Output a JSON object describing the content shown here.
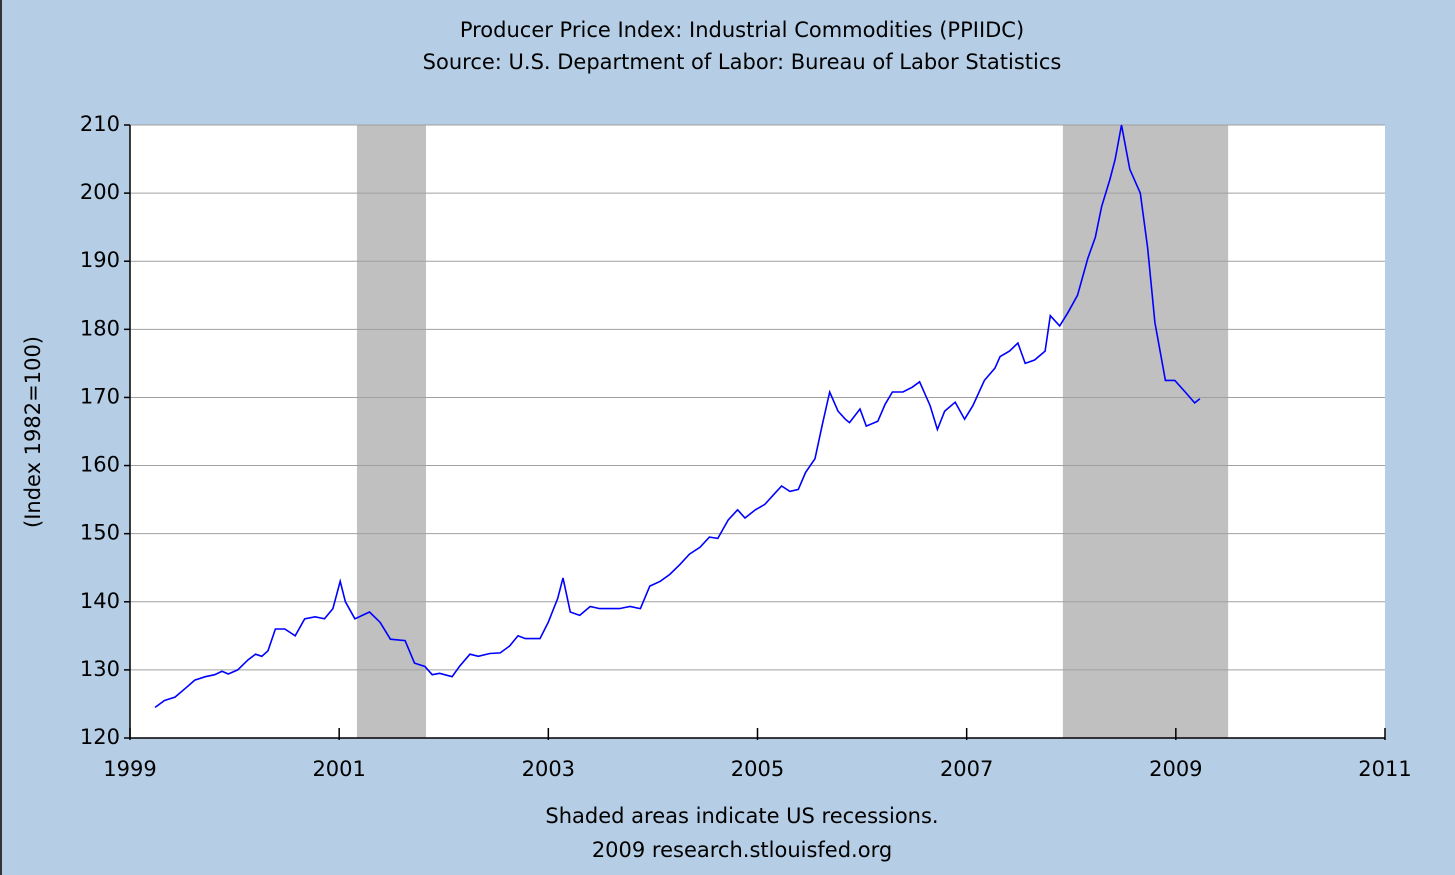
{
  "chart_data": {
    "type": "line",
    "title": "Producer Price Index: Industrial Commodities (PPIIDC)",
    "subtitle": "Source: U.S. Department of Labor: Bureau of Labor Statistics",
    "y_label": "(Index 1982=100)",
    "note": "Shaded areas indicate US recessions.",
    "credit": "2009 research.stlouisfed.org",
    "xlim": [
      1999,
      2011
    ],
    "xticks": [
      1999,
      2001,
      2003,
      2005,
      2007,
      2009,
      2011
    ],
    "ylim": [
      120,
      210
    ],
    "yticks": [
      120,
      130,
      140,
      150,
      160,
      170,
      180,
      190,
      200,
      210
    ],
    "grid": true,
    "recessions": [
      [
        2001.17,
        2001.83
      ],
      [
        2007.92,
        2009.5
      ]
    ],
    "recession_color": "#c0c0c0",
    "x": [
      1999.24,
      1999.33,
      1999.43,
      1999.53,
      1999.62,
      1999.72,
      1999.81,
      1999.88,
      1999.94,
      2000.03,
      2000.13,
      2000.2,
      2000.26,
      2000.32,
      2000.39,
      2000.48,
      2000.58,
      2000.67,
      2000.77,
      2000.86,
      2000.94,
      2001.01,
      2001.06,
      2001.15,
      2001.29,
      2001.39,
      2001.49,
      2001.63,
      2001.72,
      2001.82,
      2001.89,
      2001.96,
      2002.08,
      2002.15,
      2002.25,
      2002.33,
      2002.44,
      2002.54,
      2002.63,
      2002.71,
      2002.78,
      2002.92,
      2003.0,
      2003.09,
      2003.14,
      2003.21,
      2003.3,
      2003.4,
      2003.49,
      2003.68,
      2003.78,
      2003.88,
      2003.97,
      2004.07,
      2004.16,
      2004.26,
      2004.35,
      2004.45,
      2004.54,
      2004.62,
      2004.72,
      2004.81,
      2004.88,
      2004.98,
      2005.07,
      2005.17,
      2005.23,
      2005.31,
      2005.39,
      2005.46,
      2005.55,
      2005.62,
      2005.69,
      2005.77,
      2005.84,
      2005.88,
      2005.98,
      2006.04,
      2006.15,
      2006.22,
      2006.29,
      2006.39,
      2006.48,
      2006.55,
      2006.65,
      2006.72,
      2006.79,
      2006.89,
      2006.98,
      2007.06,
      2007.17,
      2007.27,
      2007.32,
      2007.41,
      2007.49,
      2007.56,
      2007.65,
      2007.75,
      2007.8,
      2007.89,
      2007.97,
      2008.06,
      2008.16,
      2008.23,
      2008.29,
      2008.37,
      2008.42,
      2008.48,
      2008.56,
      2008.66,
      2008.73,
      2008.8,
      2008.9,
      2008.99,
      2009.09,
      2009.18,
      2009.23
    ],
    "series": [
      {
        "name": "PPIIDC",
        "color": "#0000ff",
        "values": [
          124.5,
          125.5,
          126,
          127.3,
          128.5,
          129,
          129.3,
          129.8,
          129.4,
          130,
          131.5,
          132.3,
          132,
          132.8,
          136,
          136,
          135,
          137.5,
          137.8,
          137.5,
          139,
          143,
          140,
          137.5,
          138.5,
          137,
          134.5,
          134.3,
          131,
          130.5,
          129.3,
          129.5,
          129,
          130.5,
          132.3,
          132,
          132.4,
          132.5,
          133.5,
          135,
          134.6,
          134.6,
          137,
          140.5,
          143.5,
          138.5,
          138,
          139.3,
          139,
          139,
          139.3,
          139,
          142.3,
          143,
          144,
          145.5,
          147,
          148,
          149.5,
          149.3,
          152,
          153.5,
          152.3,
          153.5,
          154.3,
          156,
          157,
          156.2,
          156.5,
          159,
          161,
          166,
          170.8,
          168,
          166.8,
          166.3,
          168.3,
          165.8,
          166.5,
          169,
          170.8,
          170.8,
          171.5,
          172.3,
          168.8,
          165.3,
          168,
          169.3,
          166.8,
          168.8,
          172.5,
          174.3,
          176,
          176.8,
          178,
          175,
          175.5,
          176.8,
          182,
          180.5,
          182.5,
          185,
          190.5,
          193.5,
          198,
          202,
          205,
          210,
          203.5,
          200,
          192,
          181,
          172.5,
          172.5,
          170.8,
          169.2,
          169.8
        ]
      }
    ]
  }
}
